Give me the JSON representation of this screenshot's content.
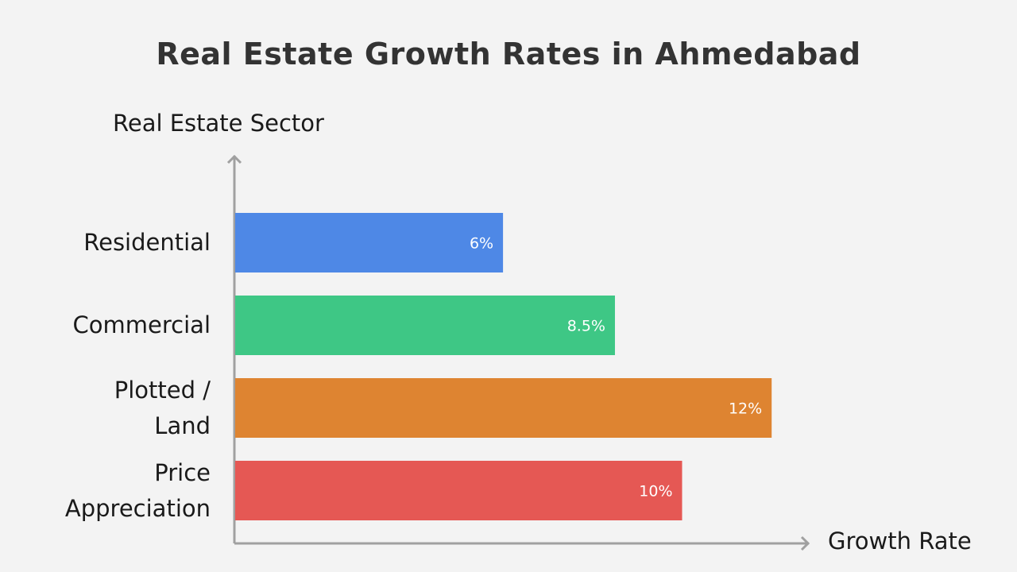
{
  "chart_data": {
    "type": "bar",
    "orientation": "horizontal",
    "title": "Real Estate Growth Rates in Ahmedabad",
    "xlabel": "Growth Rate",
    "ylabel": "Real Estate Sector",
    "categories": [
      "Residential",
      "Commercial",
      "Plotted /\nLand",
      "Price\nAppreciation"
    ],
    "values": [
      6,
      8.5,
      12,
      10
    ],
    "data_labels": [
      "6%",
      "8.5%",
      "12%",
      "10%"
    ],
    "colors": [
      "#4e88e6",
      "#3ec785",
      "#de8431",
      "#e55854"
    ],
    "axis_color": "#a0a0a0",
    "xlim": [
      0,
      13
    ],
    "grid": false,
    "legend": "none"
  }
}
